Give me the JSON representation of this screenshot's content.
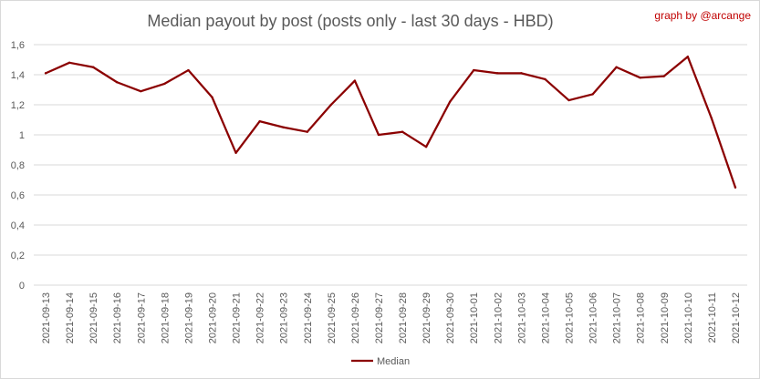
{
  "chart_data": {
    "type": "line",
    "title": "Median payout by post (posts only - last 30 days - HBD)",
    "credit": "graph by @arcange",
    "xlabel": "",
    "ylabel": "",
    "ylim": [
      0,
      1.6
    ],
    "yticks": [
      0,
      0.2,
      0.4,
      0.6,
      0.8,
      1,
      1.2,
      1.4,
      1.6
    ],
    "ytick_labels": [
      "0",
      "0,2",
      "0,4",
      "0,6",
      "0,8",
      "1",
      "1,2",
      "1,4",
      "1,6"
    ],
    "grid": true,
    "legend_position": "bottom",
    "line_color": "#8b0000",
    "categories": [
      "2021-09-13",
      "2021-09-14",
      "2021-09-15",
      "2021-09-16",
      "2021-09-17",
      "2021-09-18",
      "2021-09-19",
      "2021-09-20",
      "2021-09-21",
      "2021-09-22",
      "2021-09-23",
      "2021-09-24",
      "2021-09-25",
      "2021-09-26",
      "2021-09-27",
      "2021-09-28",
      "2021-09-29",
      "2021-09-30",
      "2021-10-01",
      "2021-10-02",
      "2021-10-03",
      "2021-10-04",
      "2021-10-05",
      "2021-10-06",
      "2021-10-07",
      "2021-10-08",
      "2021-10-09",
      "2021-10-10",
      "2021-10-11",
      "2021-10-12"
    ],
    "series": [
      {
        "name": "Median",
        "values": [
          1.41,
          1.48,
          1.45,
          1.35,
          1.29,
          1.34,
          1.43,
          1.25,
          0.88,
          1.09,
          1.05,
          1.02,
          1.2,
          1.36,
          1.0,
          1.02,
          0.92,
          1.22,
          1.43,
          1.41,
          1.41,
          1.37,
          1.23,
          1.27,
          1.45,
          1.38,
          1.39,
          1.52,
          1.11,
          0.65
        ]
      }
    ]
  }
}
